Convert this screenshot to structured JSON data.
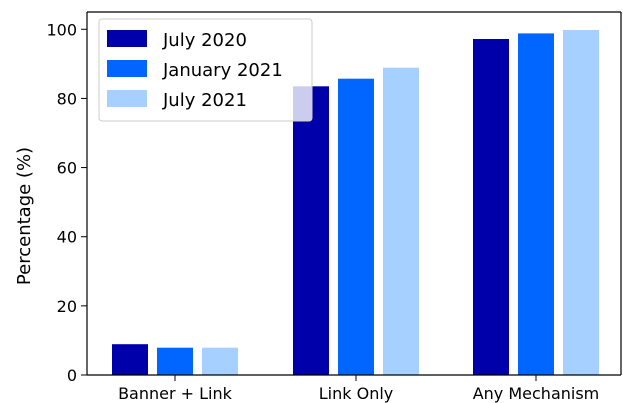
{
  "chart_data": {
    "type": "bar",
    "categories": [
      "Banner + Link",
      "Link Only",
      "Any Mechanism"
    ],
    "series": [
      {
        "name": "July 2020",
        "color": "#0000aa",
        "values": [
          8.9,
          83.5,
          97.2
        ]
      },
      {
        "name": "January 2021",
        "color": "#0066ff",
        "values": [
          7.9,
          85.7,
          98.8
        ]
      },
      {
        "name": "July 2021",
        "color": "#a6d0ff",
        "values": [
          7.9,
          88.9,
          99.8
        ]
      }
    ],
    "title": "",
    "xlabel": "",
    "ylabel": "Percentage (%)",
    "ylim": [
      0,
      105
    ],
    "yticks": [
      "0",
      "20",
      "40",
      "60",
      "80",
      "100"
    ],
    "grid": false,
    "legend_position": "top-left"
  }
}
